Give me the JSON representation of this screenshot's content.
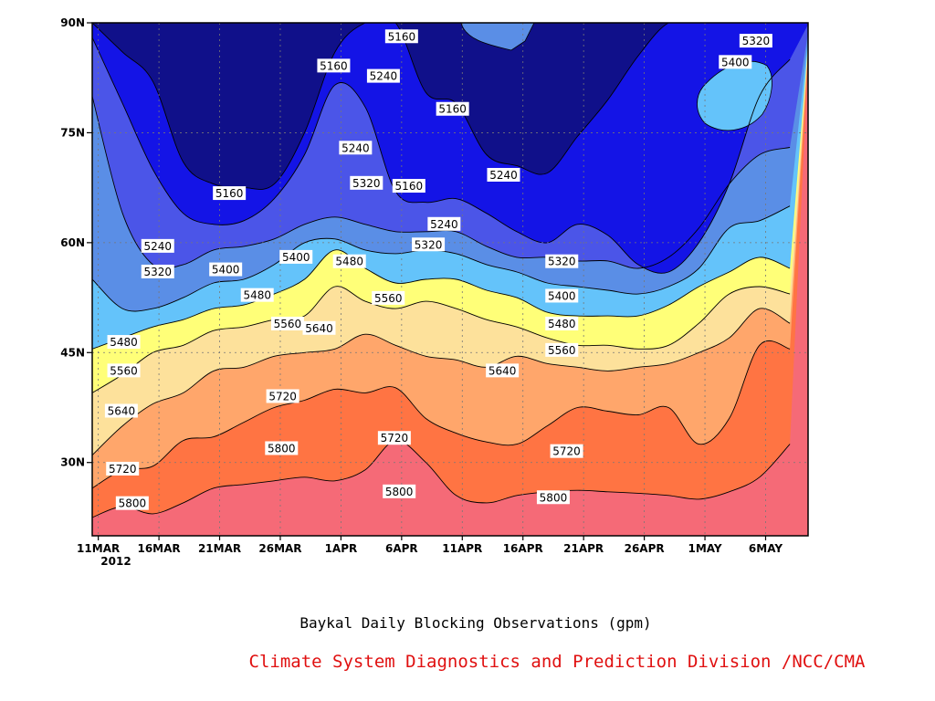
{
  "chart_data": {
    "type": "heatmap",
    "title": "Baykal Daily Blocking Observations (gpm)",
    "credit": "Climate System Diagnostics and Prediction Division /NCC/CMA",
    "xlabel": "",
    "ylabel": "",
    "x_ticks": [
      "11MAR",
      "16MAR",
      "21MAR",
      "26MAR",
      "1APR",
      "6APR",
      "11APR",
      "16APR",
      "21APR",
      "26APR",
      "1MAY",
      "6MAY"
    ],
    "x_year_label": "2012",
    "x_range_days": [
      -0.5,
      58.5
    ],
    "y_ticks": [
      "30N",
      "45N",
      "60N",
      "75N",
      "90N"
    ],
    "y_range_lat": [
      20,
      90
    ],
    "grid": true,
    "levels": [
      5160,
      5240,
      5320,
      5400,
      5480,
      5560,
      5640,
      5720,
      5800
    ],
    "band_colors": [
      "#ffffff",
      "#10108a",
      "#1414e6",
      "#4b55e8",
      "#5a8ee6",
      "#64c3fa",
      "#ffff78",
      "#fde19b",
      "#ffa66b",
      "#ff7443",
      "#f56a77"
    ],
    "contours": [
      {
        "level": 5800,
        "lat": [
          22.5,
          24,
          23,
          24.5,
          26.5,
          27,
          27.5,
          28,
          27.5,
          29,
          33,
          30,
          25.5,
          24.5,
          25.5,
          26,
          26.2,
          26,
          25.8,
          25.5,
          25,
          26,
          28,
          32.5
        ]
      },
      {
        "level": 5720,
        "lat": [
          26.5,
          29,
          29.5,
          33,
          33.5,
          35.5,
          37.5,
          38.5,
          40,
          39.5,
          40.2,
          36,
          34,
          32.8,
          32.5,
          35,
          37.5,
          37,
          36.5,
          37.5,
          32.5,
          36,
          46,
          45.5
        ]
      },
      {
        "level": 5640,
        "lat": [
          31,
          35,
          38,
          39.5,
          42.5,
          43,
          44.5,
          45,
          45.5,
          47.5,
          46,
          44.5,
          44,
          43,
          44.5,
          43.5,
          43,
          42.5,
          43,
          43.5,
          45,
          47,
          51,
          49
        ]
      },
      {
        "level": 5560,
        "lat": [
          39.5,
          42,
          45,
          46,
          48,
          48.5,
          49.5,
          50,
          54,
          52,
          51,
          52,
          51,
          49.5,
          48.5,
          47,
          46,
          46,
          45.5,
          46,
          49,
          53,
          54,
          53
        ]
      },
      {
        "level": 5480,
        "lat": [
          45.5,
          47,
          48.5,
          49.5,
          51,
          51.5,
          53,
          55,
          59,
          56.5,
          54.5,
          55,
          55,
          53.5,
          52.5,
          50.5,
          50,
          50,
          50,
          51.5,
          54,
          56,
          58,
          56.5
        ]
      },
      {
        "level": 5400,
        "lat": [
          55,
          51,
          51,
          52.5,
          54.5,
          55,
          57,
          60,
          60.5,
          59,
          58.5,
          59,
          58.5,
          57,
          56,
          54.5,
          54,
          53.5,
          53,
          54,
          56.5,
          62,
          63,
          65
        ]
      },
      {
        "level": 5320,
        "lat": [
          80,
          64,
          57,
          57,
          59,
          59.5,
          60.5,
          62.5,
          63.5,
          62.5,
          61.5,
          61.5,
          61.5,
          59.5,
          58,
          58,
          57.5,
          57.5,
          56.5,
          58,
          62,
          68,
          72,
          73
        ]
      },
      {
        "level": 5240,
        "lat": [
          88,
          79,
          70,
          64,
          62.5,
          63,
          66,
          72,
          81.5,
          78.5,
          67,
          65.5,
          66,
          64,
          61.5,
          60,
          62.5,
          61,
          57,
          56,
          60,
          68,
          80,
          85
        ]
      },
      {
        "level": 5160,
        "lat": [
          90,
          86,
          82,
          71,
          68,
          67.5,
          68,
          75,
          86,
          90,
          90,
          80.5,
          79,
          72,
          70.5,
          69.5,
          74.5,
          79.5,
          85.5,
          90,
          90,
          90,
          90,
          90
        ]
      }
    ],
    "contour_labels": [
      {
        "text": "5160",
        "x": 25,
        "y": 88.1
      },
      {
        "text": "5320",
        "x": 54.2,
        "y": 87.5
      },
      {
        "text": "5400",
        "x": 52.5,
        "y": 84.6
      },
      {
        "text": "5160",
        "x": 19.4,
        "y": 84.1
      },
      {
        "text": "5240",
        "x": 23.5,
        "y": 82.7
      },
      {
        "text": "5160",
        "x": 29.2,
        "y": 78.2
      },
      {
        "text": "5240",
        "x": 21.2,
        "y": 72.9
      },
      {
        "text": "5240",
        "x": 33.4,
        "y": 69.2
      },
      {
        "text": "5160",
        "x": 10.8,
        "y": 66.7
      },
      {
        "text": "5320",
        "x": 22.1,
        "y": 68.1
      },
      {
        "text": "5160",
        "x": 25.6,
        "y": 67.7
      },
      {
        "text": "5240",
        "x": 28.5,
        "y": 62.5
      },
      {
        "text": "5240",
        "x": 4.9,
        "y": 59.5
      },
      {
        "text": "5320",
        "x": 27.2,
        "y": 59.7
      },
      {
        "text": "5400",
        "x": 16.3,
        "y": 58.0
      },
      {
        "text": "5320",
        "x": 4.9,
        "y": 56.0
      },
      {
        "text": "5400",
        "x": 10.5,
        "y": 56.3
      },
      {
        "text": "5480",
        "x": 20.7,
        "y": 57.4
      },
      {
        "text": "5320",
        "x": 38.2,
        "y": 57.4
      },
      {
        "text": "5480",
        "x": 13.1,
        "y": 52.8
      },
      {
        "text": "5560",
        "x": 23.9,
        "y": 52.4
      },
      {
        "text": "5400",
        "x": 38.2,
        "y": 52.7
      },
      {
        "text": "5480",
        "x": 38.2,
        "y": 48.9
      },
      {
        "text": "5560",
        "x": 15.6,
        "y": 48.9
      },
      {
        "text": "5640",
        "x": 18.2,
        "y": 48.3
      },
      {
        "text": "5560",
        "x": 38.2,
        "y": 45.3
      },
      {
        "text": "5480",
        "x": 2.1,
        "y": 46.4
      },
      {
        "text": "5560",
        "x": 2.1,
        "y": 42.5
      },
      {
        "text": "5640",
        "x": 33.3,
        "y": 42.5
      },
      {
        "text": "5720",
        "x": 15.2,
        "y": 39.0
      },
      {
        "text": "5640",
        "x": 1.9,
        "y": 37.0
      },
      {
        "text": "5720",
        "x": 24.4,
        "y": 33.3
      },
      {
        "text": "5720",
        "x": 38.6,
        "y": 31.5
      },
      {
        "text": "5800",
        "x": 15.1,
        "y": 31.9
      },
      {
        "text": "5720",
        "x": 2.0,
        "y": 29.1
      },
      {
        "text": "5800",
        "x": 24.8,
        "y": 26.0
      },
      {
        "text": "5800",
        "x": 37.5,
        "y": 25.2
      },
      {
        "text": "5800",
        "x": 2.8,
        "y": 24.4
      }
    ]
  }
}
